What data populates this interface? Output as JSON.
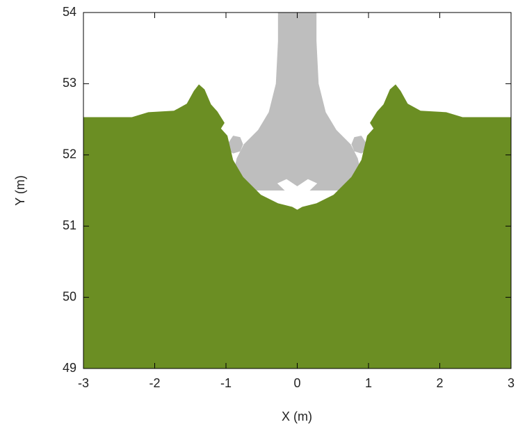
{
  "chart_data": {
    "type": "region",
    "x_label": "X (m)",
    "y_label": "Y (m)",
    "xlim": [
      -3,
      3
    ],
    "ylim": [
      49,
      54
    ],
    "xticks": [
      -3,
      -2,
      -1,
      0,
      1,
      2,
      3
    ],
    "yticks": [
      49,
      50,
      51,
      52,
      53,
      54
    ],
    "series": [
      {
        "color": "#bebebe",
        "x": [
          -0.27,
          -0.27,
          -0.3,
          -0.4,
          -0.55,
          -0.75,
          -0.85,
          -0.95,
          0.95,
          0.85,
          0.75,
          0.55,
          0.4,
          0.3,
          0.27,
          0.27
        ],
        "y": [
          54,
          53.6,
          53.0,
          52.6,
          52.35,
          52.15,
          51.95,
          51.5,
          51.5,
          51.95,
          52.15,
          52.35,
          52.6,
          53.0,
          53.6,
          54
        ]
      },
      {
        "color": "#bebebe",
        "x": [
          -0.98,
          -0.9,
          -0.8,
          -0.76,
          -0.8,
          -0.9,
          -0.98
        ],
        "y": [
          52.15,
          52.27,
          52.25,
          52.15,
          52.05,
          52.02,
          52.07
        ]
      },
      {
        "color": "#bebebe",
        "x": [
          0.98,
          0.9,
          0.8,
          0.76,
          0.8,
          0.9,
          0.98
        ],
        "y": [
          52.15,
          52.27,
          52.25,
          52.15,
          52.05,
          52.02,
          52.07
        ]
      },
      {
        "color": "#ffffff",
        "x": [
          -0.28,
          -0.15,
          0,
          0.15,
          0.28,
          0.05,
          0.05,
          -0.05,
          -0.05
        ],
        "y": [
          51.6,
          51.66,
          51.56,
          51.66,
          51.6,
          51.38,
          51.2,
          51.2,
          51.38
        ]
      },
      {
        "color": "#6b8e23",
        "x": [
          -3,
          -2.32,
          -2.09,
          -1.73,
          -1.55,
          -1.45,
          -1.38,
          -1.3,
          -1.21,
          -1.12,
          -1.02,
          -1.07,
          -0.98,
          -0.9,
          -0.76,
          -0.51,
          -0.27,
          -0.07,
          0,
          0.07,
          0.27,
          0.51,
          0.76,
          0.9,
          0.98,
          1.07,
          1.02,
          1.12,
          1.21,
          1.3,
          1.38,
          1.45,
          1.55,
          1.73,
          2.09,
          2.32,
          3,
          3,
          -3
        ],
        "y": [
          52.53,
          52.53,
          52.6,
          52.62,
          52.72,
          52.9,
          52.99,
          52.92,
          52.71,
          52.61,
          52.45,
          52.37,
          52.27,
          51.93,
          51.69,
          51.44,
          51.32,
          51.27,
          51.23,
          51.27,
          51.32,
          51.44,
          51.69,
          51.93,
          52.27,
          52.37,
          52.45,
          52.61,
          52.71,
          52.92,
          52.99,
          52.9,
          52.72,
          52.62,
          52.6,
          52.53,
          52.53,
          49,
          49
        ]
      }
    ]
  }
}
